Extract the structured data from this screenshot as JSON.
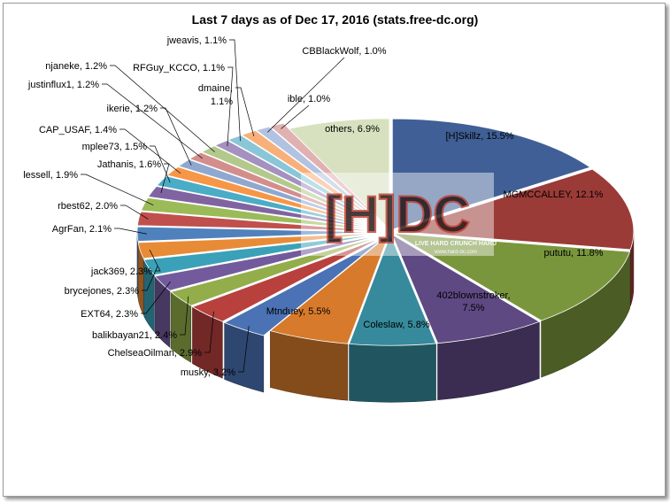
{
  "chart_data": {
    "type": "pie",
    "title": "Last 7 days as of Dec 17, 2016 (stats.free-dc.org)",
    "style": "3d-exploded",
    "series": [
      {
        "label": "[H]Skillz",
        "value": 15.5,
        "color": "#3f5f96"
      },
      {
        "label": "MGMCCALLEY",
        "value": 12.1,
        "color": "#9a3b37"
      },
      {
        "label": "pututu",
        "value": 11.8,
        "color": "#79963c"
      },
      {
        "label": "402blownstroker",
        "value": 7.5,
        "color": "#5e4983"
      },
      {
        "label": "Coleslaw",
        "value": 5.8,
        "color": "#368a9c"
      },
      {
        "label": "Mtnduey",
        "value": 5.5,
        "color": "#d77a2c"
      },
      {
        "label": "musky",
        "value": 3.2,
        "color": "#4a72b4"
      },
      {
        "label": "ChelseaOilman",
        "value": 2.9,
        "color": "#b8413d"
      },
      {
        "label": "balikbayan21",
        "value": 2.4,
        "color": "#92ad4a"
      },
      {
        "label": "EXT64",
        "value": 2.3,
        "color": "#735a9c"
      },
      {
        "label": "brycejones",
        "value": 2.3,
        "color": "#3aa1b8"
      },
      {
        "label": "jack369",
        "value": 2.3,
        "color": "#e88b37"
      },
      {
        "label": "AgrFan",
        "value": 2.1,
        "color": "#4f81bd"
      },
      {
        "label": "rbest62",
        "value": 2.0,
        "color": "#c0504d"
      },
      {
        "label": "lessell",
        "value": 1.9,
        "color": "#9bbb59"
      },
      {
        "label": "Jathanis",
        "value": 1.6,
        "color": "#8064a2"
      },
      {
        "label": "mplee73",
        "value": 1.5,
        "color": "#4bacc6"
      },
      {
        "label": "CAP_USAF",
        "value": 1.4,
        "color": "#f79646"
      },
      {
        "label": "ikerie",
        "value": 1.2,
        "color": "#8fa8d0"
      },
      {
        "label": "justinflux1",
        "value": 1.2,
        "color": "#d38e8c"
      },
      {
        "label": "njaneke",
        "value": 1.2,
        "color": "#b3c98c"
      },
      {
        "label": "RFGuy_KCCO",
        "value": 1.1,
        "color": "#a491bf"
      },
      {
        "label": "jweavis",
        "value": 1.1,
        "color": "#88c6d8"
      },
      {
        "label": "dmaine",
        "value": 1.1,
        "color": "#f8b07a"
      },
      {
        "label": "CBBlackWolf",
        "value": 1.0,
        "color": "#b1c3e0"
      },
      {
        "label": "ible",
        "value": 1.0,
        "color": "#e0b1b0"
      },
      {
        "label": "others",
        "value": 6.9,
        "color": "#d7e1bf"
      }
    ],
    "label_format": "{label}, {value}%",
    "legend": "none",
    "watermark": {
      "brand": "[H]DC",
      "tagline": "LIVE HARD CRUNCH HARD",
      "url": "www.hard-dc.com"
    }
  }
}
